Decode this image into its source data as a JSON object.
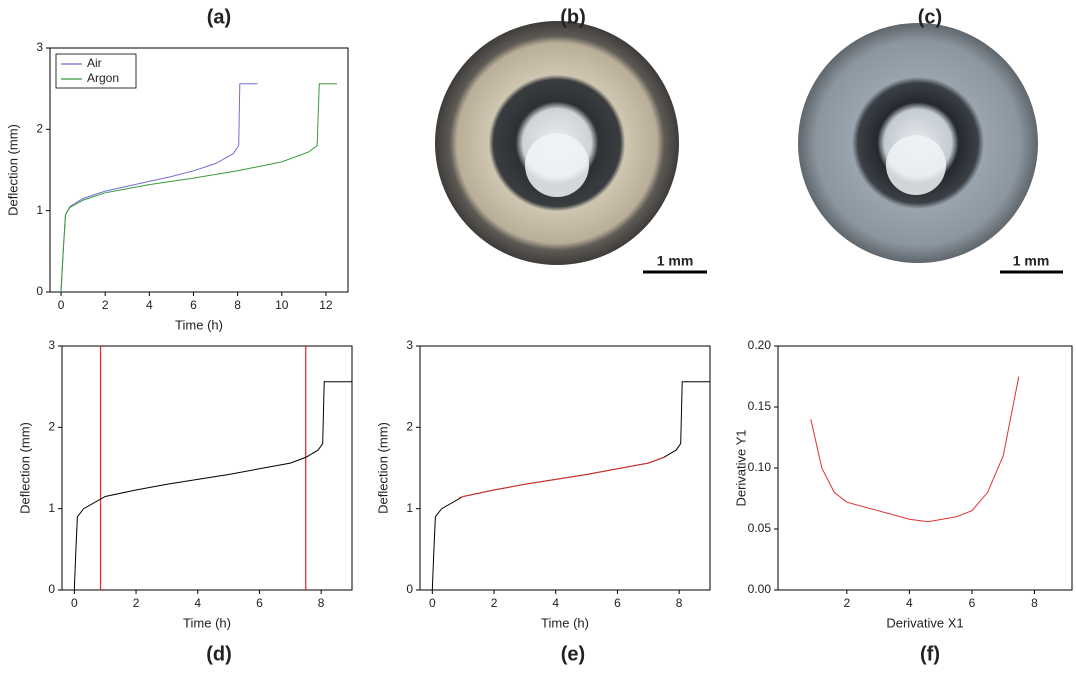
{
  "chart_data": [
    {
      "type": "line",
      "title": "(a)",
      "x_label": "Time (h)",
      "y_label": "Deflection (mm)",
      "xlim": [
        -0.5,
        13
      ],
      "ylim": [
        0,
        3
      ],
      "xticks": [
        0,
        2,
        4,
        6,
        8,
        10,
        12
      ],
      "yticks": [
        0,
        1,
        2,
        3
      ],
      "legend": "top-left",
      "series": [
        {
          "name": "Air",
          "color": "#6f6fd8",
          "x": [
            0,
            0.1,
            0.2,
            0.4,
            1,
            2,
            3,
            4,
            5,
            6,
            7,
            7.8,
            8.05,
            8.1,
            8.9
          ],
          "values": [
            0,
            0.5,
            0.95,
            1.05,
            1.15,
            1.24,
            1.3,
            1.36,
            1.42,
            1.49,
            1.58,
            1.7,
            1.8,
            2.56,
            2.56
          ]
        },
        {
          "name": "Argon",
          "color": "#3a9a3a",
          "x": [
            0,
            0.1,
            0.2,
            0.4,
            1,
            2,
            4,
            6,
            8,
            10,
            11.2,
            11.6,
            11.7,
            12.5
          ],
          "values": [
            0,
            0.5,
            0.95,
            1.04,
            1.13,
            1.22,
            1.32,
            1.4,
            1.49,
            1.6,
            1.72,
            1.8,
            2.56,
            2.56
          ]
        }
      ]
    },
    {
      "type": "line",
      "title": "(d)",
      "x_label": "Time (h)",
      "y_label": "Deflection (mm)",
      "xlim": [
        -0.4,
        9
      ],
      "ylim": [
        0,
        3
      ],
      "xticks": [
        0,
        2,
        4,
        6,
        8
      ],
      "yticks": [
        0,
        1,
        2,
        3
      ],
      "vlines": [
        0.85,
        7.5
      ],
      "vline_color": "#e03030",
      "series": [
        {
          "color": "#000000",
          "x": [
            0,
            0.05,
            0.1,
            0.3,
            1,
            2,
            3,
            4,
            5,
            6,
            7,
            7.5,
            7.9,
            8.05,
            8.1,
            9
          ],
          "values": [
            0,
            0.5,
            0.9,
            1.0,
            1.15,
            1.23,
            1.3,
            1.36,
            1.42,
            1.49,
            1.56,
            1.63,
            1.72,
            1.8,
            2.56,
            2.56
          ]
        }
      ]
    },
    {
      "type": "line",
      "title": "(e)",
      "x_label": "Time (h)",
      "y_label": "Deflection (mm)",
      "xlim": [
        -0.4,
        9
      ],
      "ylim": [
        0,
        3
      ],
      "xticks": [
        0,
        2,
        4,
        6,
        8
      ],
      "yticks": [
        0,
        1,
        2,
        3
      ],
      "series": [
        {
          "color": "#000000",
          "x": [
            0,
            0.05,
            0.1,
            0.3,
            1,
            2,
            3,
            4,
            5,
            6,
            7,
            7.5,
            7.9,
            8.05,
            8.1,
            9
          ],
          "values": [
            0,
            0.5,
            0.9,
            1.0,
            1.15,
            1.23,
            1.3,
            1.36,
            1.42,
            1.49,
            1.56,
            1.63,
            1.72,
            1.8,
            2.56,
            2.56
          ]
        },
        {
          "color": "#e03030",
          "x": [
            0.85,
            1,
            2,
            3,
            4,
            5,
            6,
            7,
            7.5
          ],
          "values": [
            1.13,
            1.15,
            1.23,
            1.3,
            1.36,
            1.42,
            1.49,
            1.56,
            1.63
          ]
        }
      ]
    },
    {
      "type": "line",
      "title": "(f)",
      "x_label": "Derivative X1",
      "y_label": "Derivative Y1",
      "xlim": [
        -0.2,
        9.2
      ],
      "ylim": [
        0,
        0.2
      ],
      "xticks": [
        2,
        4,
        6,
        8
      ],
      "yticks": [
        {
          "value": 0,
          "label": "0.00"
        },
        0.05,
        {
          "value": 0.1,
          "label": "0.10"
        },
        0.15,
        {
          "value": 0.2,
          "label": "0.20"
        }
      ],
      "series": [
        {
          "color": "#e03030",
          "x": [
            0.85,
            1.2,
            1.6,
            2,
            3,
            4,
            4.6,
            5.5,
            6,
            6.5,
            7,
            7.5
          ],
          "values": [
            0.14,
            0.1,
            0.08,
            0.072,
            0.065,
            0.058,
            0.056,
            0.06,
            0.065,
            0.08,
            0.11,
            0.175
          ]
        }
      ]
    }
  ],
  "photos": [
    {
      "label": "(b)",
      "scale_bar": "1 mm"
    },
    {
      "label": "(c)",
      "scale_bar": "1 mm"
    }
  ]
}
